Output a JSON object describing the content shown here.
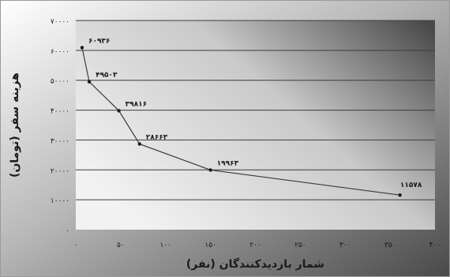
{
  "chart_data": {
    "type": "line",
    "title": "",
    "xlabel": "شمار بازدیدکنندگان (نفر)",
    "ylabel": "هزینه سفر (تومان)",
    "xlim": [
      0,
      400
    ],
    "ylim": [
      0,
      70000
    ],
    "x_ticks": [
      0,
      50,
      100,
      150,
      200,
      250,
      300,
      350,
      400
    ],
    "x_tick_labels": [
      "۰",
      "۵۰",
      "۱۰۰",
      "۱۵۰",
      "۲۰۰",
      "۲۵۰",
      "۳۰۰",
      "۳۵۰",
      "۴۰۰"
    ],
    "y_ticks": [
      0,
      10000,
      20000,
      30000,
      40000,
      50000,
      60000,
      70000
    ],
    "y_tick_labels": [
      "۰",
      "۱۰۰۰۰",
      "۲۰۰۰۰",
      "۳۰۰۰۰",
      "۴۰۰۰۰",
      "۵۰۰۰۰",
      "۶۰۰۰۰",
      "۷۰۰۰۰"
    ],
    "grid": "horizontal",
    "series": [
      {
        "x": [
          7,
          15,
          48,
          71,
          150,
          361
        ],
        "y": [
          60936,
          49503,
          39816,
          28663,
          19963,
          11578
        ],
        "point_labels": [
          "۶۰۹۳۶",
          "۴۹۵۰۳",
          "۳۹۸۱۶",
          "۲۸۶۶۳",
          "۱۹۹۶۳",
          "۱۱۵۷۸"
        ]
      }
    ],
    "colors": {
      "line": "#3a3a3a",
      "gridline": "#3c3c3c",
      "text": "#1a1a1a",
      "panel_dark": "#4a4a4a",
      "panel_light": "#f2f2f2"
    }
  }
}
